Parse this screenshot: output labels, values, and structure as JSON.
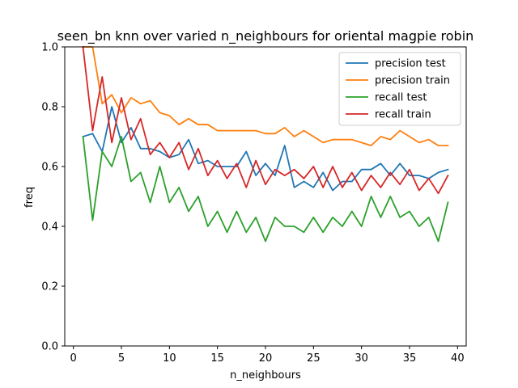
{
  "chart_data": {
    "type": "line",
    "title": "seen_bn knn over varied n_neighbours for oriental magpie robin",
    "xlabel": "n_neighbours",
    "ylabel": "freq",
    "xlim": [
      -0.9,
      40.9
    ],
    "ylim": [
      0.0,
      1.0
    ],
    "xticks": [
      0,
      5,
      10,
      15,
      20,
      25,
      30,
      35,
      40
    ],
    "yticks": [
      0.0,
      0.2,
      0.4,
      0.6,
      0.8,
      1.0
    ],
    "xtick_labels": [
      "0",
      "5",
      "10",
      "15",
      "20",
      "25",
      "30",
      "35",
      "40"
    ],
    "ytick_labels": [
      "0.0",
      "0.2",
      "0.4",
      "0.6",
      "0.8",
      "1.0"
    ],
    "grid": false,
    "legend_position": "top-right",
    "x": [
      1,
      2,
      3,
      4,
      5,
      6,
      7,
      8,
      9,
      10,
      11,
      12,
      13,
      14,
      15,
      16,
      17,
      18,
      19,
      20,
      21,
      22,
      23,
      24,
      25,
      26,
      27,
      28,
      29,
      30,
      31,
      32,
      33,
      34,
      35,
      36,
      37,
      38,
      39
    ],
    "series": [
      {
        "name": "precision test",
        "color": "#1f77b4",
        "values": [
          0.7,
          0.71,
          0.65,
          0.8,
          0.68,
          0.73,
          0.66,
          0.66,
          0.65,
          0.63,
          0.64,
          0.69,
          0.61,
          0.62,
          0.6,
          0.6,
          0.6,
          0.65,
          0.57,
          0.61,
          0.57,
          0.67,
          0.53,
          0.55,
          0.53,
          0.58,
          0.52,
          0.55,
          0.55,
          0.59,
          0.59,
          0.61,
          0.57,
          0.61,
          0.57,
          0.57,
          0.56,
          0.58,
          0.59
        ]
      },
      {
        "name": "precision train",
        "color": "#ff7f0e",
        "values": [
          1.0,
          1.0,
          0.81,
          0.84,
          0.78,
          0.83,
          0.81,
          0.82,
          0.78,
          0.77,
          0.74,
          0.76,
          0.74,
          0.74,
          0.72,
          0.72,
          0.72,
          0.72,
          0.72,
          0.71,
          0.71,
          0.73,
          0.7,
          0.72,
          0.7,
          0.68,
          0.69,
          0.69,
          0.69,
          0.68,
          0.67,
          0.7,
          0.69,
          0.72,
          0.7,
          0.68,
          0.69,
          0.67,
          0.67
        ]
      },
      {
        "name": "recall test",
        "color": "#2ca02c",
        "values": [
          0.7,
          0.42,
          0.65,
          0.6,
          0.7,
          0.55,
          0.58,
          0.48,
          0.6,
          0.48,
          0.53,
          0.45,
          0.5,
          0.4,
          0.45,
          0.38,
          0.45,
          0.38,
          0.43,
          0.35,
          0.43,
          0.4,
          0.4,
          0.38,
          0.43,
          0.38,
          0.43,
          0.4,
          0.45,
          0.4,
          0.5,
          0.43,
          0.5,
          0.43,
          0.45,
          0.4,
          0.43,
          0.35,
          0.48
        ]
      },
      {
        "name": "recall train",
        "color": "#d62728",
        "values": [
          1.0,
          0.72,
          0.9,
          0.68,
          0.83,
          0.69,
          0.76,
          0.64,
          0.68,
          0.63,
          0.68,
          0.59,
          0.66,
          0.57,
          0.62,
          0.56,
          0.61,
          0.53,
          0.62,
          0.54,
          0.59,
          0.57,
          0.59,
          0.56,
          0.6,
          0.53,
          0.6,
          0.53,
          0.58,
          0.52,
          0.57,
          0.53,
          0.58,
          0.54,
          0.59,
          0.52,
          0.56,
          0.51,
          0.57
        ]
      }
    ]
  }
}
